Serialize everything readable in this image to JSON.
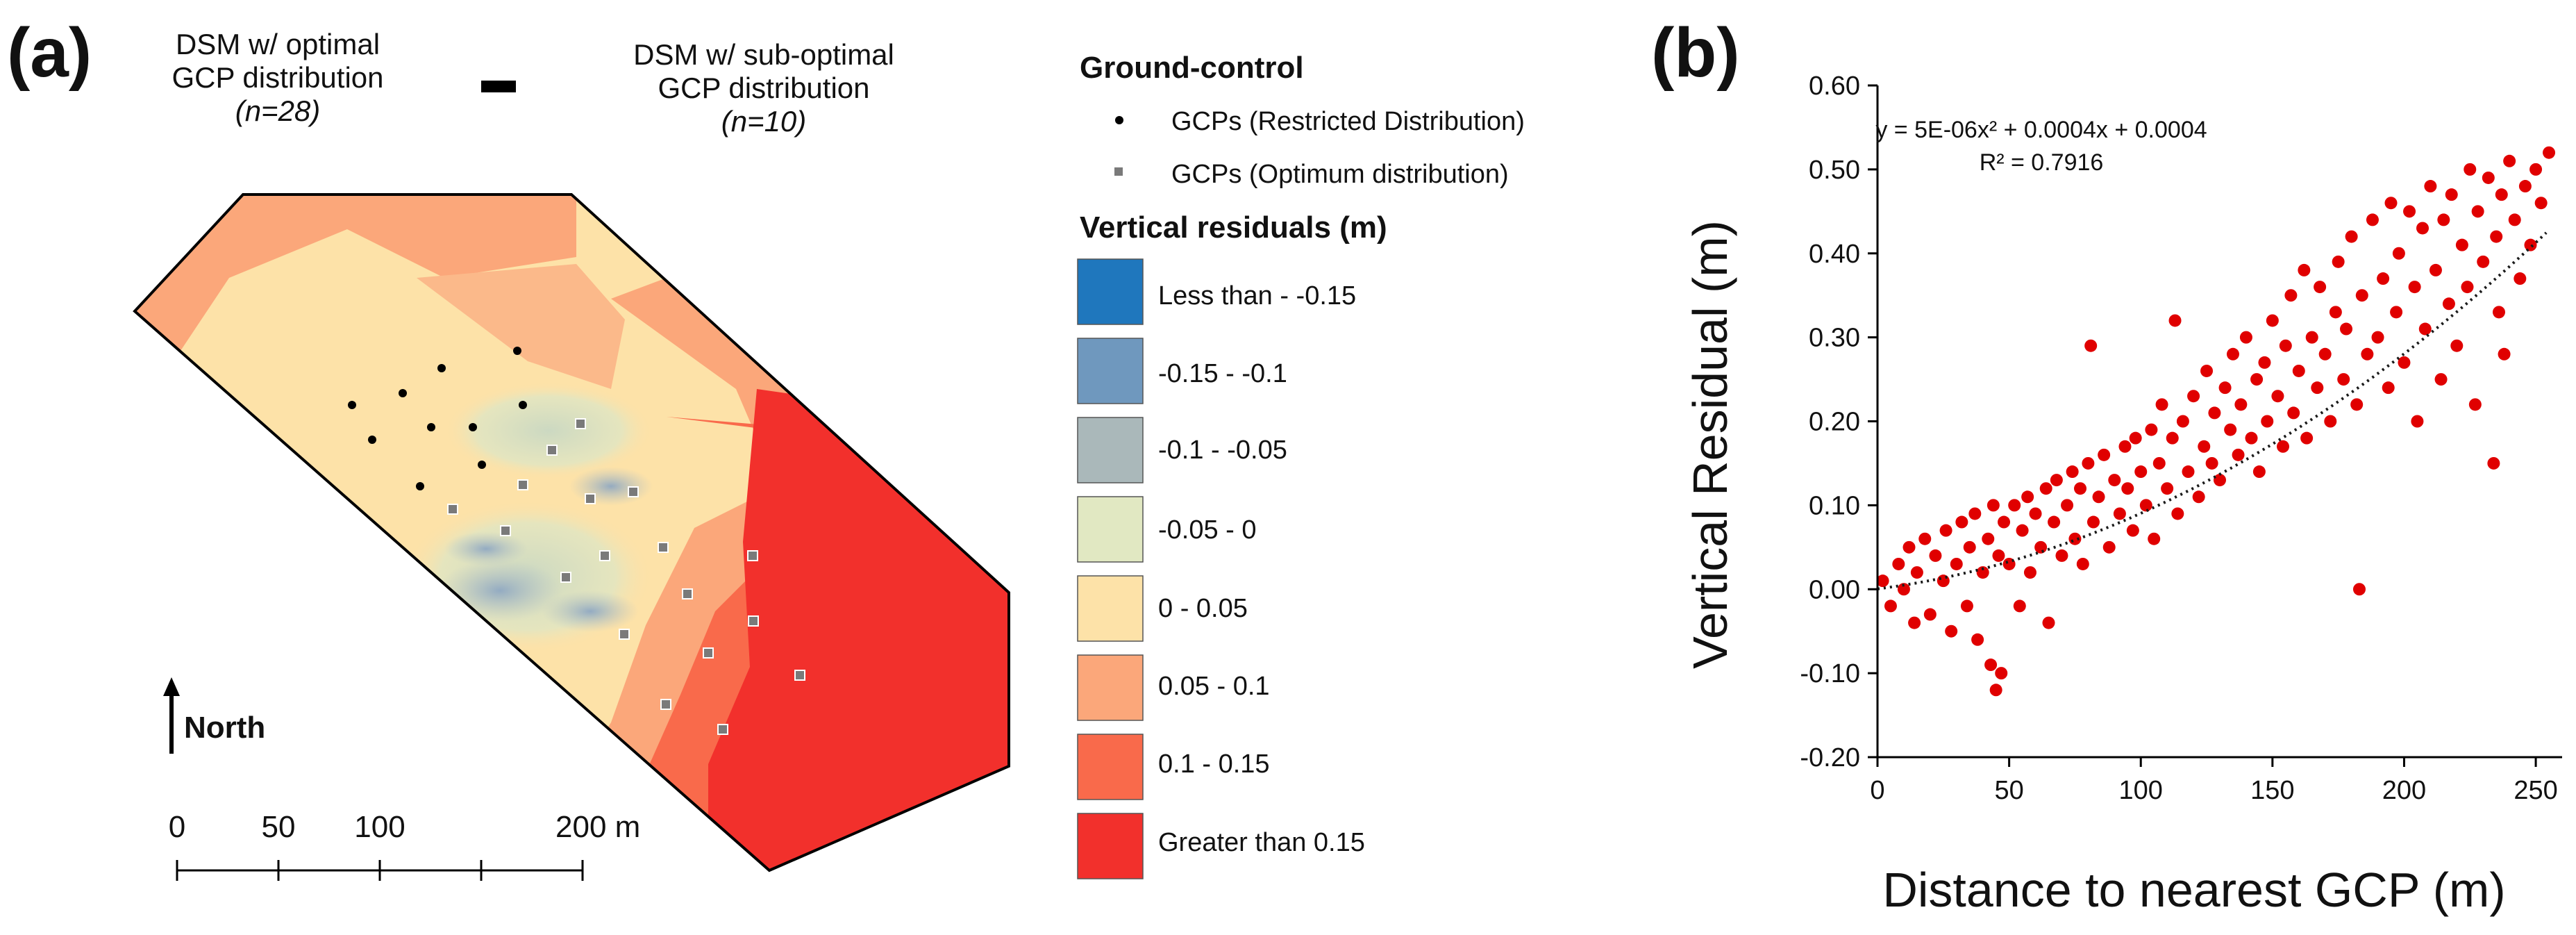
{
  "panel_a": {
    "label": "(a)",
    "title_left_line1": "DSM w/ optimal",
    "title_left_line2": "GCP distribution",
    "title_left_n": "(n=28)",
    "minus_sign": "–",
    "title_right_line1": "DSM w/ sub-optimal",
    "title_right_line2": "GCP distribution",
    "title_right_n": "(n=10)",
    "north_label": "North",
    "scalebar": {
      "labels": [
        "0",
        "50",
        "100",
        "200 m"
      ]
    }
  },
  "legend": {
    "ground_control_title": "Ground-control",
    "gcp_restricted": "GCPs (Restricted Distribution)",
    "gcp_optimum": "GCPs (Optimum distribution)",
    "residuals_title": "Vertical residuals (m)",
    "classes": [
      {
        "label": "Less than - -0.15",
        "color": "#1f77bd"
      },
      {
        "label": "-0.15 - -0.1",
        "color": "#6f98be"
      },
      {
        "label": "-0.1 - -0.05",
        "color": "#aab8ba"
      },
      {
        "label": "-0.05 - 0",
        "color": "#e1e8c2"
      },
      {
        "label": "0 - 0.05",
        "color": "#fde2a8"
      },
      {
        "label": "0.05 - 0.1",
        "color": "#fba77a"
      },
      {
        "label": "0.1 - 0.15",
        "color": "#f96a4b"
      },
      {
        "label": "Greater than 0.15",
        "color": "#f2302c"
      }
    ]
  },
  "panel_b": {
    "label": "(b)",
    "equation": "y = 5E-06x² + 0.0004x + 0.0004",
    "r_squared": "R² = 0.7916"
  },
  "chart_data": {
    "type": "scatter",
    "title": "",
    "xlabel": "Distance to nearest GCP (m)",
    "ylabel": "Vertical Residual (m)",
    "xlim": [
      0,
      260
    ],
    "ylim": [
      -0.2,
      0.6
    ],
    "x_ticks": [
      0,
      50,
      100,
      150,
      200,
      250
    ],
    "y_ticks": [
      -0.2,
      -0.1,
      0.0,
      0.1,
      0.2,
      0.3,
      0.4,
      0.5,
      0.6
    ],
    "x_tick_labels": [
      "0",
      "50",
      "100",
      "150",
      "200",
      "250"
    ],
    "y_tick_labels": [
      "-0.20",
      "-0.10",
      "0.00",
      "0.10",
      "0.20",
      "0.30",
      "0.40",
      "0.50",
      "0.60"
    ],
    "series": [
      {
        "name": "Vertical residuals",
        "color": "#e00000",
        "points": [
          [
            2,
            0.01
          ],
          [
            5,
            -0.02
          ],
          [
            8,
            0.03
          ],
          [
            10,
            0.0
          ],
          [
            12,
            0.05
          ],
          [
            14,
            -0.04
          ],
          [
            15,
            0.02
          ],
          [
            18,
            0.06
          ],
          [
            20,
            -0.03
          ],
          [
            22,
            0.04
          ],
          [
            25,
            0.01
          ],
          [
            26,
            0.07
          ],
          [
            28,
            -0.05
          ],
          [
            30,
            0.03
          ],
          [
            32,
            0.08
          ],
          [
            34,
            -0.02
          ],
          [
            35,
            0.05
          ],
          [
            37,
            0.09
          ],
          [
            38,
            -0.06
          ],
          [
            40,
            0.02
          ],
          [
            42,
            0.06
          ],
          [
            43,
            -0.09
          ],
          [
            44,
            0.1
          ],
          [
            45,
            -0.12
          ],
          [
            46,
            0.04
          ],
          [
            47,
            -0.1
          ],
          [
            48,
            0.08
          ],
          [
            50,
            0.03
          ],
          [
            52,
            0.1
          ],
          [
            54,
            -0.02
          ],
          [
            55,
            0.07
          ],
          [
            57,
            0.11
          ],
          [
            58,
            0.02
          ],
          [
            60,
            0.09
          ],
          [
            62,
            0.05
          ],
          [
            64,
            0.12
          ],
          [
            65,
            -0.04
          ],
          [
            67,
            0.08
          ],
          [
            68,
            0.13
          ],
          [
            70,
            0.04
          ],
          [
            72,
            0.1
          ],
          [
            74,
            0.14
          ],
          [
            75,
            0.06
          ],
          [
            77,
            0.12
          ],
          [
            78,
            0.03
          ],
          [
            80,
            0.15
          ],
          [
            81,
            0.29
          ],
          [
            82,
            0.08
          ],
          [
            84,
            0.11
          ],
          [
            86,
            0.16
          ],
          [
            88,
            0.05
          ],
          [
            90,
            0.13
          ],
          [
            92,
            0.09
          ],
          [
            94,
            0.17
          ],
          [
            95,
            0.12
          ],
          [
            97,
            0.07
          ],
          [
            98,
            0.18
          ],
          [
            100,
            0.14
          ],
          [
            102,
            0.1
          ],
          [
            104,
            0.19
          ],
          [
            105,
            0.06
          ],
          [
            107,
            0.15
          ],
          [
            108,
            0.22
          ],
          [
            110,
            0.12
          ],
          [
            112,
            0.18
          ],
          [
            113,
            0.32
          ],
          [
            114,
            0.09
          ],
          [
            116,
            0.2
          ],
          [
            118,
            0.14
          ],
          [
            120,
            0.23
          ],
          [
            122,
            0.11
          ],
          [
            124,
            0.17
          ],
          [
            125,
            0.26
          ],
          [
            127,
            0.15
          ],
          [
            128,
            0.21
          ],
          [
            130,
            0.13
          ],
          [
            132,
            0.24
          ],
          [
            134,
            0.19
          ],
          [
            135,
            0.28
          ],
          [
            137,
            0.16
          ],
          [
            138,
            0.22
          ],
          [
            140,
            0.3
          ],
          [
            142,
            0.18
          ],
          [
            144,
            0.25
          ],
          [
            145,
            0.14
          ],
          [
            147,
            0.27
          ],
          [
            148,
            0.2
          ],
          [
            150,
            0.32
          ],
          [
            152,
            0.23
          ],
          [
            154,
            0.17
          ],
          [
            155,
            0.29
          ],
          [
            157,
            0.35
          ],
          [
            158,
            0.21
          ],
          [
            160,
            0.26
          ],
          [
            162,
            0.38
          ],
          [
            163,
            0.18
          ],
          [
            165,
            0.3
          ],
          [
            167,
            0.24
          ],
          [
            168,
            0.36
          ],
          [
            170,
            0.28
          ],
          [
            172,
            0.2
          ],
          [
            174,
            0.33
          ],
          [
            175,
            0.39
          ],
          [
            177,
            0.25
          ],
          [
            178,
            0.31
          ],
          [
            180,
            0.42
          ],
          [
            182,
            0.22
          ],
          [
            183,
            0.0
          ],
          [
            184,
            0.35
          ],
          [
            186,
            0.28
          ],
          [
            188,
            0.44
          ],
          [
            190,
            0.3
          ],
          [
            192,
            0.37
          ],
          [
            194,
            0.24
          ],
          [
            195,
            0.46
          ],
          [
            197,
            0.33
          ],
          [
            198,
            0.4
          ],
          [
            200,
            0.27
          ],
          [
            202,
            0.45
          ],
          [
            204,
            0.36
          ],
          [
            205,
            0.2
          ],
          [
            207,
            0.43
          ],
          [
            208,
            0.31
          ],
          [
            210,
            0.48
          ],
          [
            212,
            0.38
          ],
          [
            214,
            0.25
          ],
          [
            215,
            0.44
          ],
          [
            217,
            0.34
          ],
          [
            218,
            0.47
          ],
          [
            220,
            0.29
          ],
          [
            222,
            0.41
          ],
          [
            224,
            0.36
          ],
          [
            225,
            0.5
          ],
          [
            227,
            0.22
          ],
          [
            228,
            0.45
          ],
          [
            230,
            0.39
          ],
          [
            232,
            0.49
          ],
          [
            234,
            0.15
          ],
          [
            235,
            0.42
          ],
          [
            236,
            0.33
          ],
          [
            237,
            0.47
          ],
          [
            238,
            0.28
          ],
          [
            240,
            0.51
          ],
          [
            242,
            0.44
          ],
          [
            244,
            0.37
          ],
          [
            246,
            0.48
          ],
          [
            248,
            0.41
          ],
          [
            250,
            0.5
          ],
          [
            252,
            0.46
          ],
          [
            255,
            0.52
          ]
        ]
      }
    ],
    "trendline": {
      "type": "polynomial",
      "order": 2,
      "coefficients": [
        5e-06,
        0.0004,
        0.0004
      ]
    }
  }
}
